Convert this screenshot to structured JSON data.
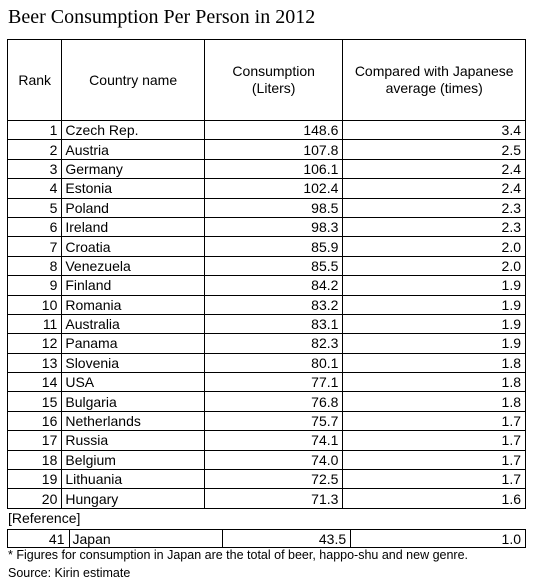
{
  "title": "Beer Consumption Per Person in 2012",
  "headers": {
    "rank": "Rank",
    "country": "Country name",
    "consumption": "Consumption (Liters)",
    "compared": "Compared with Japanese average (times)"
  },
  "rows": [
    {
      "rank": "1",
      "country": "Czech Rep.",
      "consumption": "148.6",
      "compared": "3.4"
    },
    {
      "rank": "2",
      "country": "Austria",
      "consumption": "107.8",
      "compared": "2.5"
    },
    {
      "rank": "3",
      "country": "Germany",
      "consumption": "106.1",
      "compared": "2.4"
    },
    {
      "rank": "4",
      "country": "Estonia",
      "consumption": "102.4",
      "compared": "2.4"
    },
    {
      "rank": "5",
      "country": "Poland",
      "consumption": "98.5",
      "compared": "2.3"
    },
    {
      "rank": "6",
      "country": "Ireland",
      "consumption": "98.3",
      "compared": "2.3"
    },
    {
      "rank": "7",
      "country": "Croatia",
      "consumption": "85.9",
      "compared": "2.0"
    },
    {
      "rank": "8",
      "country": "Venezuela",
      "consumption": "85.5",
      "compared": "2.0"
    },
    {
      "rank": "9",
      "country": "Finland",
      "consumption": "84.2",
      "compared": "1.9"
    },
    {
      "rank": "10",
      "country": "Romania",
      "consumption": "83.2",
      "compared": "1.9"
    },
    {
      "rank": "11",
      "country": "Australia",
      "consumption": "83.1",
      "compared": "1.9"
    },
    {
      "rank": "12",
      "country": "Panama",
      "consumption": "82.3",
      "compared": "1.9"
    },
    {
      "rank": "13",
      "country": "Slovenia",
      "consumption": "80.1",
      "compared": "1.8"
    },
    {
      "rank": "14",
      "country": "USA",
      "consumption": "77.1",
      "compared": "1.8"
    },
    {
      "rank": "15",
      "country": "Bulgaria",
      "consumption": "76.8",
      "compared": "1.8"
    },
    {
      "rank": "16",
      "country": "Netherlands",
      "consumption": "75.7",
      "compared": "1.7"
    },
    {
      "rank": "17",
      "country": "Russia",
      "consumption": "74.1",
      "compared": "1.7"
    },
    {
      "rank": "18",
      "country": "Belgium",
      "consumption": "74.0",
      "compared": "1.7"
    },
    {
      "rank": "19",
      "country": "Lithuania",
      "consumption": "72.5",
      "compared": "1.7"
    },
    {
      "rank": "20",
      "country": "Hungary",
      "consumption": "71.3",
      "compared": "1.6"
    }
  ],
  "reference_label": "[Reference]",
  "reference_row": {
    "rank": "41",
    "country": "Japan",
    "consumption": "43.5",
    "compared": "1.0"
  },
  "footnote": "* Figures for consumption in Japan are the total of beer, happo-shu and new genre.",
  "source": "Source: Kirin estimate"
}
